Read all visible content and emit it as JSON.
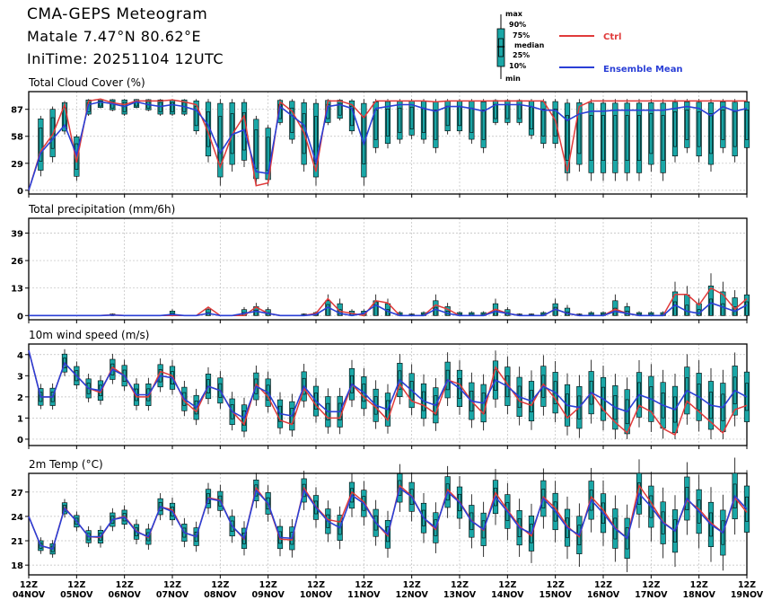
{
  "header": {
    "title": "CMA-GEPS Meteogram",
    "location": "Matale 7.47°N 80.62°E",
    "init": "IniTime: 20251104 12UTC"
  },
  "legend": {
    "box_labels": [
      "max",
      "90%",
      "75%",
      "median",
      "25%",
      "10%",
      "min"
    ],
    "ctrl": "Ctrl",
    "mean": "Ensemble Mean",
    "ctrl_color": "#e03a3a",
    "mean_color": "#2a3fd6",
    "box_color": "#1aa7a7"
  },
  "chart_data": [
    {
      "type": "line",
      "title": "Total Cloud Cover (%)",
      "ylim": [
        -4,
        106
      ],
      "yticks": [
        0,
        29,
        58,
        87
      ],
      "x_hours_step": 6,
      "series": [
        {
          "name": "Ctrl",
          "values": [
            0,
            42,
            60,
            92,
            30,
            96,
            98,
            94,
            92,
            96,
            96,
            96,
            97,
            95,
            92,
            62,
            25,
            60,
            80,
            5,
            8,
            95,
            85,
            62,
            20,
            96,
            96,
            92,
            78,
            96,
            96,
            96,
            96,
            96,
            95,
            96,
            96,
            96,
            96,
            96,
            96,
            96,
            96,
            96,
            75,
            20,
            90,
            96,
            96,
            96,
            96,
            96,
            96,
            96,
            96,
            96,
            96,
            96,
            96,
            96,
            96
          ]
        },
        {
          "name": "Ensemble Mean",
          "values": [
            0,
            40,
            55,
            70,
            38,
            92,
            95,
            93,
            90,
            95,
            92,
            90,
            92,
            90,
            86,
            70,
            40,
            60,
            65,
            20,
            18,
            90,
            80,
            70,
            30,
            90,
            92,
            88,
            50,
            88,
            90,
            92,
            92,
            88,
            85,
            90,
            90,
            88,
            85,
            92,
            92,
            92,
            90,
            86,
            86,
            75,
            82,
            85,
            85,
            86,
            86,
            86,
            86,
            86,
            88,
            90,
            88,
            80,
            90,
            85,
            88
          ]
        }
      ],
      "box_range": [
        [
          0,
          0
        ],
        [
          15,
          80
        ],
        [
          30,
          90
        ],
        [
          60,
          96
        ],
        [
          10,
          60
        ],
        [
          80,
          98
        ],
        [
          88,
          98
        ],
        [
          85,
          98
        ],
        [
          80,
          98
        ],
        [
          88,
          98
        ],
        [
          85,
          98
        ],
        [
          80,
          98
        ],
        [
          80,
          98
        ],
        [
          80,
          98
        ],
        [
          60,
          98
        ],
        [
          30,
          98
        ],
        [
          5,
          98
        ],
        [
          20,
          98
        ],
        [
          25,
          98
        ],
        [
          5,
          80
        ],
        [
          5,
          70
        ],
        [
          70,
          98
        ],
        [
          50,
          98
        ],
        [
          20,
          98
        ],
        [
          5,
          98
        ],
        [
          70,
          98
        ],
        [
          75,
          98
        ],
        [
          60,
          98
        ],
        [
          5,
          98
        ],
        [
          40,
          98
        ],
        [
          45,
          98
        ],
        [
          50,
          98
        ],
        [
          55,
          98
        ],
        [
          50,
          98
        ],
        [
          40,
          98
        ],
        [
          60,
          98
        ],
        [
          60,
          98
        ],
        [
          50,
          98
        ],
        [
          40,
          98
        ],
        [
          70,
          98
        ],
        [
          70,
          98
        ],
        [
          70,
          98
        ],
        [
          55,
          98
        ],
        [
          45,
          98
        ],
        [
          45,
          98
        ],
        [
          10,
          98
        ],
        [
          20,
          98
        ],
        [
          10,
          98
        ],
        [
          10,
          98
        ],
        [
          10,
          98
        ],
        [
          10,
          98
        ],
        [
          10,
          98
        ],
        [
          20,
          98
        ],
        [
          10,
          98
        ],
        [
          30,
          98
        ],
        [
          40,
          98
        ],
        [
          30,
          98
        ],
        [
          20,
          98
        ],
        [
          40,
          98
        ],
        [
          30,
          98
        ],
        [
          40,
          98
        ]
      ]
    },
    {
      "type": "line",
      "title": "Total precipitation (mm/6h)",
      "ylim": [
        -2,
        46
      ],
      "yticks": [
        0,
        13,
        26,
        39
      ],
      "x_hours_step": 6,
      "series": [
        {
          "name": "Ctrl",
          "values": [
            0,
            0,
            0,
            0,
            0,
            0,
            0,
            0.3,
            0,
            0,
            0,
            0,
            0,
            0,
            0,
            4,
            0,
            0,
            0,
            4,
            1,
            0,
            0,
            0,
            1,
            8,
            2,
            1,
            0,
            7,
            6,
            0,
            0,
            0,
            5,
            3,
            0,
            0,
            0,
            3,
            1,
            0,
            0,
            0,
            3,
            1,
            0,
            0,
            0,
            3,
            1,
            0,
            0,
            0,
            10,
            10,
            5,
            13,
            10,
            3,
            8
          ]
        },
        {
          "name": "Ensemble Mean",
          "values": [
            0,
            0,
            0,
            0,
            0,
            0,
            0,
            0.2,
            0,
            0,
            0,
            0,
            0.5,
            0,
            0,
            1,
            0,
            0,
            1,
            2,
            1,
            0,
            0,
            0,
            0.5,
            4,
            1,
            0,
            1,
            5,
            2,
            0,
            0,
            0,
            3,
            1,
            0,
            0,
            0,
            2,
            1,
            0,
            0,
            0,
            3,
            1,
            0,
            0,
            0,
            2,
            1,
            0,
            0,
            0,
            5,
            2,
            1,
            6,
            4,
            2,
            5
          ]
        },
        {
          "name": "box_max",
          "values": [
            0,
            0,
            0,
            0,
            0,
            0,
            0,
            1,
            0,
            0,
            0,
            0,
            3,
            0,
            0,
            4,
            0,
            0,
            4,
            6,
            4,
            0,
            0,
            1,
            2,
            10,
            8,
            3,
            3,
            10,
            8,
            2,
            1,
            2,
            10,
            6,
            2,
            2,
            2,
            8,
            4,
            1,
            1,
            2,
            8,
            5,
            1,
            2,
            2,
            10,
            6,
            2,
            2,
            2,
            16,
            14,
            8,
            20,
            16,
            12,
            14
          ]
        }
      ]
    },
    {
      "type": "line",
      "title": "10m wind speed (m/s)",
      "ylim": [
        -0.3,
        4.5
      ],
      "yticks": [
        0,
        1,
        2,
        3,
        4
      ],
      "x_hours_step": 6,
      "series": [
        {
          "name": "Ctrl",
          "values": [
            4.2,
            2.0,
            2.0,
            3.6,
            3.0,
            2.4,
            2.2,
            3.4,
            3.0,
            2.0,
            2.0,
            3.2,
            3.0,
            1.8,
            1.3,
            2.5,
            2.3,
            1.3,
            0.7,
            2.6,
            2.0,
            0.9,
            0.7,
            2.4,
            1.6,
            1.0,
            1.0,
            2.6,
            2.0,
            1.5,
            0.9,
            2.6,
            1.8,
            1.6,
            1.2,
            2.8,
            2.6,
            1.8,
            1.2,
            3.4,
            2.6,
            1.8,
            1.6,
            2.6,
            1.9,
            1.0,
            1.5,
            2.2,
            1.4,
            0.8,
            0.3,
            1.6,
            1.3,
            0.5,
            0.2,
            1.8,
            1.3,
            0.8,
            0.3,
            1.4,
            1.6
          ]
        },
        {
          "name": "Ensemble Mean",
          "values": [
            4.2,
            2.0,
            2.0,
            3.6,
            3.0,
            2.4,
            2.3,
            3.3,
            3.0,
            2.1,
            2.1,
            3.0,
            2.9,
            1.9,
            1.5,
            2.5,
            2.3,
            1.3,
            1.0,
            2.5,
            2.2,
            1.2,
            1.1,
            2.5,
            1.8,
            1.3,
            1.3,
            2.6,
            2.2,
            1.6,
            1.4,
            2.8,
            2.3,
            1.8,
            1.6,
            2.8,
            2.4,
            1.8,
            1.7,
            2.8,
            2.5,
            2.0,
            1.8,
            2.5,
            2.2,
            1.6,
            1.5,
            2.2,
            1.9,
            1.5,
            1.3,
            2.1,
            1.9,
            1.6,
            1.4,
            2.3,
            2.0,
            1.6,
            1.5,
            2.3,
            2.0
          ]
        }
      ]
    },
    {
      "type": "line",
      "title": "2m Temp (°C)",
      "ylim": [
        16.8,
        29.3
      ],
      "yticks": [
        18,
        21,
        24,
        27
      ],
      "x_hours_step": 6,
      "xlabels_top": [
        "12Z",
        "12Z",
        "12Z",
        "12Z",
        "12Z",
        "12Z",
        "12Z",
        "12Z",
        "12Z",
        "12Z",
        "12Z",
        "12Z",
        "12Z",
        "12Z",
        "12Z",
        "12Z"
      ],
      "xlabels": [
        "04NOV",
        "05NOV",
        "06NOV",
        "07NOV",
        "08NOV",
        "09NOV",
        "10NOV",
        "11NOV",
        "12NOV",
        "13NOV",
        "14NOV",
        "15NOV",
        "16NOV",
        "17NOV",
        "18NOV",
        "19NOV"
      ],
      "series": [
        {
          "name": "Ctrl",
          "values": [
            24.0,
            20.4,
            20.0,
            25.1,
            23.4,
            21.5,
            21.4,
            23.6,
            24.0,
            22.2,
            21.4,
            25.2,
            24.8,
            22.0,
            21.5,
            26.3,
            26.0,
            22.8,
            21.2,
            27.5,
            25.5,
            21.2,
            21.1,
            27.5,
            25.2,
            23.6,
            23.3,
            27.0,
            25.8,
            23.2,
            21.6,
            27.8,
            26.5,
            23.8,
            22.4,
            27.3,
            25.8,
            23.5,
            22.3,
            26.9,
            24.8,
            22.8,
            21.6,
            26.4,
            25.0,
            22.8,
            21.5,
            26.4,
            24.8,
            22.6,
            21.3,
            27.8,
            25.7,
            23.3,
            22.2,
            26.0,
            24.9,
            23.2,
            22.0,
            26.3,
            24.5
          ]
        },
        {
          "name": "Ensemble Mean",
          "values": [
            24.0,
            20.4,
            20.0,
            25.0,
            23.4,
            21.5,
            21.5,
            23.6,
            23.9,
            22.1,
            21.5,
            25.2,
            24.6,
            22.0,
            21.5,
            26.2,
            25.9,
            22.8,
            21.3,
            27.2,
            25.6,
            21.4,
            21.3,
            27.2,
            25.1,
            23.4,
            22.6,
            26.6,
            25.6,
            23.2,
            21.8,
            27.5,
            26.4,
            23.8,
            22.6,
            27.0,
            25.7,
            23.4,
            22.4,
            26.4,
            24.6,
            22.6,
            21.9,
            26.2,
            24.6,
            22.6,
            21.7,
            26.0,
            24.4,
            22.5,
            21.3,
            26.8,
            25.2,
            23.2,
            22.2,
            26.2,
            24.6,
            23.0,
            22.0,
            26.5,
            24.9
          ]
        }
      ]
    }
  ]
}
